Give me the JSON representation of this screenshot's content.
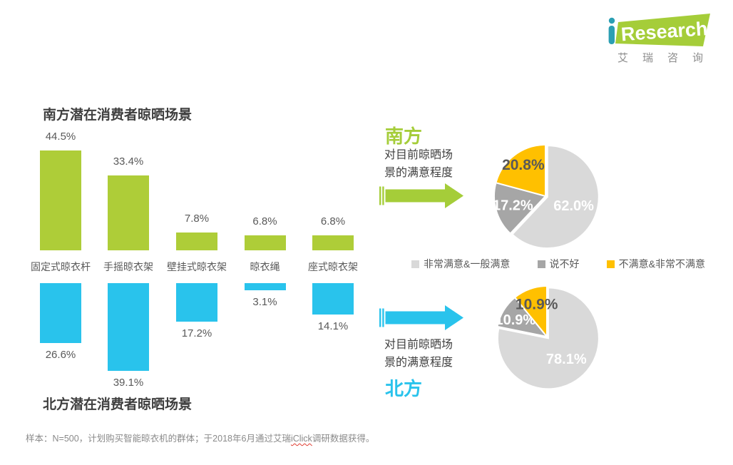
{
  "logo": {
    "brand_i": "i",
    "brand_text": "Research",
    "chinese": "艾瑞咨询"
  },
  "south_section": {
    "region_label": "南方",
    "caption_line1": "对目前晾晒场",
    "caption_line2": "景的满意程度"
  },
  "north_section": {
    "region_label": "北方",
    "caption_line1": "对目前晾晒场",
    "caption_line2": "景的满意程度"
  },
  "legend": {
    "items": [
      {
        "label": "非常满意&一般满意",
        "color": "#d9d9d9"
      },
      {
        "label": "说不好",
        "color": "#a6a6a6"
      },
      {
        "label": "不满意&非常不满意",
        "color": "#ffc000"
      }
    ]
  },
  "footnote": {
    "prefix": "样本：N=500，计划购买智能晾衣机的群体；于2018年6月通过艾瑞",
    "highlight": "iClick",
    "suffix": "调研数据获得。"
  },
  "colors": {
    "south_green": "#aecd38",
    "north_cyan": "#29c3ec",
    "pie_light_gray": "#d9d9d9",
    "pie_gray": "#a6a6a6",
    "pie_yellow": "#ffc000",
    "title_text": "#3f3f3f",
    "label_text": "#595959",
    "logo_teal": "#2b9fb3"
  },
  "chart_data": [
    {
      "id": "south_bar",
      "type": "bar",
      "title": "南方潜在消费者晾晒场景",
      "categories": [
        "固定式晾衣杆",
        "手摇晾衣架",
        "壁挂式晾衣架",
        "晾衣绳",
        "座式晾衣架"
      ],
      "values": [
        44.5,
        33.4,
        7.8,
        6.8,
        6.8
      ],
      "unit": "%",
      "bar_color": "#aecd38",
      "direction": "up",
      "value_labels": [
        "44.5%",
        "33.4%",
        "7.8%",
        "6.8%",
        "6.8%"
      ]
    },
    {
      "id": "north_bar",
      "type": "bar",
      "title": "北方潜在消费者晾晒场景",
      "categories": [
        "固定式晾衣杆",
        "手摇晾衣架",
        "壁挂式晾衣架",
        "晾衣绳",
        "座式晾衣架"
      ],
      "values": [
        26.6,
        39.1,
        17.2,
        3.1,
        14.1
      ],
      "unit": "%",
      "bar_color": "#29c3ec",
      "direction": "down",
      "value_labels": [
        "26.6%",
        "39.1%",
        "17.2%",
        "3.1%",
        "14.1%"
      ]
    },
    {
      "id": "south_pie",
      "type": "pie",
      "title": "南方 对目前晾晒场景的满意程度",
      "slices": [
        {
          "label": "非常满意&一般满意",
          "value": 62.0,
          "display": "62.0%",
          "color": "#d9d9d9",
          "text_color": "#ffffff"
        },
        {
          "label": "说不好",
          "value": 17.2,
          "display": "17.2%",
          "color": "#a6a6a6",
          "text_color": "#ffffff"
        },
        {
          "label": "不满意&非常不满意",
          "value": 20.8,
          "display": "20.8%",
          "color": "#ffc000",
          "text_color": "#595959"
        }
      ]
    },
    {
      "id": "north_pie",
      "type": "pie",
      "title": "北方 对目前晾晒场景的满意程度",
      "slices": [
        {
          "label": "非常满意&一般满意",
          "value": 78.1,
          "display": "78.1%",
          "color": "#d9d9d9",
          "text_color": "#ffffff"
        },
        {
          "label": "说不好",
          "value": 10.9,
          "display": "10.9%",
          "color": "#a6a6a6",
          "text_color": "#ffffff"
        },
        {
          "label": "不满意&非常不满意",
          "value": 10.9,
          "display": "10.9%",
          "color": "#ffc000",
          "text_color": "#595959"
        }
      ]
    }
  ]
}
